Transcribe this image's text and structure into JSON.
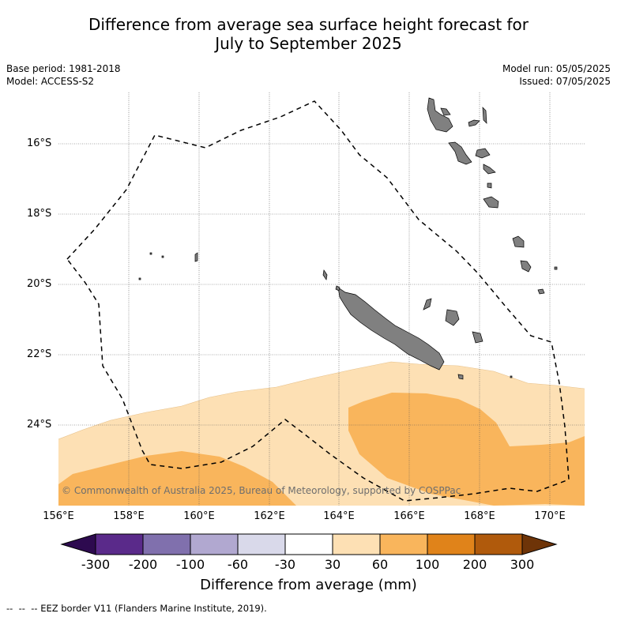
{
  "header": {
    "title_line1": "Difference from average sea surface height forecast for",
    "title_line2": "July to September 2025",
    "base_period": "Base period: 1981-2018",
    "model": "Model: ACCESS-S2",
    "model_run": "Model run: 05/05/2025",
    "issued": "Issued: 07/05/2025"
  },
  "map": {
    "lon_range": [
      156,
      171
    ],
    "lat_range": [
      -26.3,
      -14.4
    ],
    "lat_ticks": [
      {
        "value": -16,
        "label": "16°S"
      },
      {
        "value": -18,
        "label": "18°S"
      },
      {
        "value": -20,
        "label": "20°S"
      },
      {
        "value": -22,
        "label": "22°S"
      },
      {
        "value": -24,
        "label": "24°S"
      }
    ],
    "lon_ticks": [
      {
        "value": 156,
        "label": "156°E"
      },
      {
        "value": 158,
        "label": "158°E"
      },
      {
        "value": 160,
        "label": "160°E"
      },
      {
        "value": 162,
        "label": "162°E"
      },
      {
        "value": 164,
        "label": "164°E"
      },
      {
        "value": 166,
        "label": "166°E"
      },
      {
        "value": 168,
        "label": "168°E"
      },
      {
        "value": 170,
        "label": "170°E"
      }
    ],
    "contour_colors": {
      "30_to_60": "#fde0b4",
      "60_to_100": "#f9b55c"
    },
    "land_color": "#808080",
    "copyright": "© Commonwealth of Australia 2025, Bureau of Meteorology, supported by COSPPac"
  },
  "colorbar": {
    "colors": [
      "#2d0a4f",
      "#5a2a8a",
      "#8070ad",
      "#b1a8d0",
      "#d9d9ea",
      "#ffffff",
      "#fde0b4",
      "#f9b55c",
      "#e0831a",
      "#b05a0c",
      "#6e3408"
    ],
    "ticks": [
      "-300",
      "-200",
      "-100",
      "-60",
      "-30",
      "30",
      "60",
      "100",
      "200",
      "300"
    ],
    "label": "Difference from average (mm)"
  },
  "legend": {
    "text": "-- EEZ border V11 (Flanders Marine Institute, 2019)."
  }
}
